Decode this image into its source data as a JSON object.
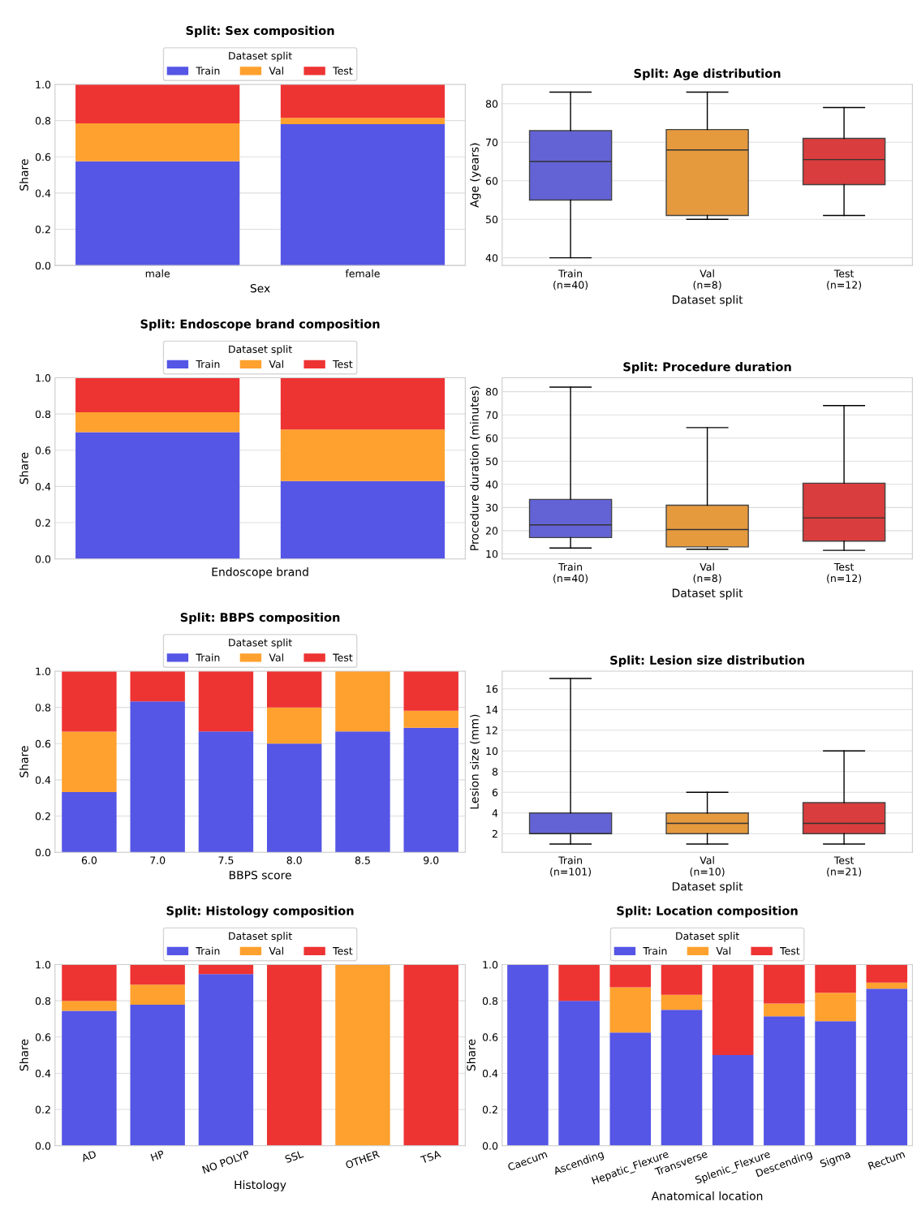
{
  "chart_data": [
    {
      "type": "bar",
      "stacked": true,
      "title": "Split: Sex composition",
      "xlabel": "Sex",
      "ylabel": "Share",
      "categories": [
        "male",
        "female"
      ],
      "series": [
        {
          "name": "Train",
          "color": "#5555e6",
          "values": [
            0.575,
            0.78
          ]
        },
        {
          "name": "Val",
          "color": "#ffa12e",
          "values": [
            0.21,
            0.035
          ]
        },
        {
          "name": "Test",
          "color": "#ee3333",
          "values": [
            0.215,
            0.185
          ]
        }
      ],
      "legend_title": "Dataset split",
      "legend": "top",
      "grid": "y",
      "ylim": [
        0,
        1
      ],
      "yticks": [
        {
          "value": 0,
          "label": "0.0"
        },
        {
          "value": 0.2,
          "label": "0.2"
        },
        {
          "value": 0.4,
          "label": "0.4"
        },
        {
          "value": 0.6,
          "label": "0.6"
        },
        {
          "value": 0.8,
          "label": "0.8"
        },
        {
          "value": 1,
          "label": "1.0"
        }
      ]
    },
    {
      "type": "box",
      "title": "Split: Age distribution",
      "xlabel": "Dataset split",
      "ylabel": "Age (years)",
      "categories": [
        "Train\n(n=40)",
        "Val\n(n=8)",
        "Test\n(n=12)"
      ],
      "colors": [
        "#6363d6",
        "#e69a3e",
        "#d93d3d"
      ],
      "boxes": [
        {
          "low": 40,
          "q1": 55,
          "median": 65,
          "q3": 73,
          "high": 83
        },
        {
          "low": 50,
          "q1": 51,
          "median": 68,
          "q3": 73.3,
          "high": 83
        },
        {
          "low": 51,
          "q1": 59,
          "median": 65.5,
          "q3": 71,
          "high": 79
        }
      ],
      "grid": "y",
      "ylim": [
        38,
        85
      ],
      "yticks": [
        40,
        50,
        60,
        70,
        80
      ]
    },
    {
      "type": "bar",
      "stacked": true,
      "title": "Split: Endoscope brand composition",
      "xlabel": "Endoscope brand",
      "ylabel": "Share",
      "categories": [
        null,
        null
      ],
      "series": [
        {
          "name": "Train",
          "color": "#5555e6",
          "values": [
            0.7,
            0.43
          ]
        },
        {
          "name": "Val",
          "color": "#ffa12e",
          "values": [
            0.11,
            0.285
          ]
        },
        {
          "name": "Test",
          "color": "#ee3333",
          "values": [
            0.19,
            0.285
          ]
        }
      ],
      "legend_title": "Dataset split",
      "legend": "top",
      "grid": "y",
      "ylim": [
        0,
        1
      ],
      "yticks": [
        {
          "value": 0,
          "label": "0.0"
        },
        {
          "value": 0.2,
          "label": "0.2"
        },
        {
          "value": 0.4,
          "label": "0.4"
        },
        {
          "value": 0.6,
          "label": "0.6"
        },
        {
          "value": 0.8,
          "label": "0.8"
        },
        {
          "value": 1,
          "label": "1.0"
        }
      ]
    },
    {
      "type": "box",
      "title": "Split: Procedure duration",
      "xlabel": "Dataset split",
      "ylabel": "Procedure duration (minutes)",
      "categories": [
        "Train\n(n=40)",
        "Val\n(n=8)",
        "Test\n(n=12)"
      ],
      "colors": [
        "#6363d6",
        "#e69a3e",
        "#d93d3d"
      ],
      "boxes": [
        {
          "low": 12.5,
          "q1": 17,
          "median": 22.5,
          "q3": 33.5,
          "high": 82
        },
        {
          "low": 12,
          "q1": 13,
          "median": 20.5,
          "q3": 31,
          "high": 64.5
        },
        {
          "low": 11.5,
          "q1": 15.5,
          "median": 25.5,
          "q3": 40.5,
          "high": 74
        }
      ],
      "grid": "y",
      "ylim": [
        7.8,
        86
      ],
      "yticks": [
        10,
        20,
        30,
        40,
        50,
        60,
        70,
        80
      ]
    },
    {
      "type": "bar",
      "stacked": true,
      "title": "Split: BBPS composition",
      "xlabel": "BBPS score",
      "ylabel": "Share",
      "categories": [
        "6.0",
        "7.0",
        "7.5",
        "8.0",
        "8.5",
        "9.0"
      ],
      "series": [
        {
          "name": "Train",
          "color": "#5555e6",
          "values": [
            0.333,
            0.833,
            0.667,
            0.6,
            0.667,
            0.688
          ]
        },
        {
          "name": "Val",
          "color": "#ffa12e",
          "values": [
            0.333,
            0,
            0,
            0.2,
            0.333,
            0.094
          ]
        },
        {
          "name": "Test",
          "color": "#ee3333",
          "values": [
            0.333,
            0.167,
            0.333,
            0.2,
            0,
            0.219
          ]
        }
      ],
      "legend_title": "Dataset split",
      "legend": "top",
      "grid": "y",
      "ylim": [
        0,
        1
      ],
      "yticks": [
        {
          "value": 0,
          "label": "0.0"
        },
        {
          "value": 0.2,
          "label": "0.2"
        },
        {
          "value": 0.4,
          "label": "0.4"
        },
        {
          "value": 0.6,
          "label": "0.6"
        },
        {
          "value": 0.8,
          "label": "0.8"
        },
        {
          "value": 1,
          "label": "1.0"
        }
      ]
    },
    {
      "type": "box",
      "title": "Split: Lesion size distribution",
      "xlabel": "Dataset split",
      "ylabel": "Lesion size (mm)",
      "categories": [
        "Train\n(n=101)",
        "Val\n(n=10)",
        "Test\n(n=21)"
      ],
      "colors": [
        "#6363d6",
        "#e69a3e",
        "#d93d3d"
      ],
      "boxes": [
        {
          "low": 1,
          "q1": 2,
          "median": 2,
          "q3": 4,
          "high": 17
        },
        {
          "low": 1,
          "q1": 2,
          "median": 3,
          "q3": 4,
          "high": 6
        },
        {
          "low": 1,
          "q1": 2,
          "median": 3,
          "q3": 5,
          "high": 10
        }
      ],
      "grid": "y",
      "ylim": [
        0.2,
        17.7
      ],
      "yticks": [
        2,
        4,
        6,
        8,
        10,
        12,
        14,
        16
      ]
    },
    {
      "type": "bar",
      "stacked": true,
      "title": "Split: Histology composition",
      "xlabel": "Histology",
      "ylabel": "Share",
      "categories": [
        "AD",
        "HP",
        "NO POLYP",
        "SSL",
        "OTHER",
        "TSA"
      ],
      "series": [
        {
          "name": "Train",
          "color": "#5555e6",
          "values": [
            0.745,
            0.778,
            0.947,
            0,
            0,
            0
          ]
        },
        {
          "name": "Val",
          "color": "#ffa12e",
          "values": [
            0.055,
            0.111,
            0,
            0,
            1,
            0
          ]
        },
        {
          "name": "Test",
          "color": "#ee3333",
          "values": [
            0.2,
            0.111,
            0.053,
            1,
            0,
            1
          ]
        }
      ],
      "legend_title": "Dataset split",
      "legend": "top",
      "grid": "y",
      "ylim": [
        0,
        1
      ],
      "yticks": [
        {
          "value": 0,
          "label": "0.0"
        },
        {
          "value": 0.2,
          "label": "0.2"
        },
        {
          "value": 0.4,
          "label": "0.4"
        },
        {
          "value": 0.6,
          "label": "0.6"
        },
        {
          "value": 0.8,
          "label": "0.8"
        },
        {
          "value": 1,
          "label": "1.0"
        }
      ]
    },
    {
      "type": "bar",
      "stacked": true,
      "title": "Split: Location composition",
      "xlabel": "Anatomical location",
      "ylabel": "Share",
      "categories": [
        "Caecum",
        "Ascending",
        "Hepatic_Flexure",
        "Transverse",
        "Splenic_Flexure",
        "Descending",
        "Sigma",
        "Rectum"
      ],
      "series": [
        {
          "name": "Train",
          "color": "#5555e6",
          "values": [
            1,
            0.8,
            0.625,
            0.75,
            0.5,
            0.714,
            0.688,
            0.867
          ]
        },
        {
          "name": "Val",
          "color": "#ffa12e",
          "values": [
            0,
            0,
            0.25,
            0.083,
            0,
            0.071,
            0.156,
            0.033
          ]
        },
        {
          "name": "Test",
          "color": "#ee3333",
          "values": [
            0,
            0.2,
            0.125,
            0.167,
            0.5,
            0.214,
            0.156,
            0.1
          ]
        }
      ],
      "legend_title": "Dataset split",
      "legend": "top",
      "grid": "y",
      "ylim": [
        0,
        1
      ],
      "yticks": [
        {
          "value": 0,
          "label": "0.0"
        },
        {
          "value": 0.2,
          "label": "0.2"
        },
        {
          "value": 0.4,
          "label": "0.4"
        },
        {
          "value": 0.6,
          "label": "0.6"
        },
        {
          "value": 0.8,
          "label": "0.8"
        },
        {
          "value": 1,
          "label": "1.0"
        }
      ]
    }
  ]
}
